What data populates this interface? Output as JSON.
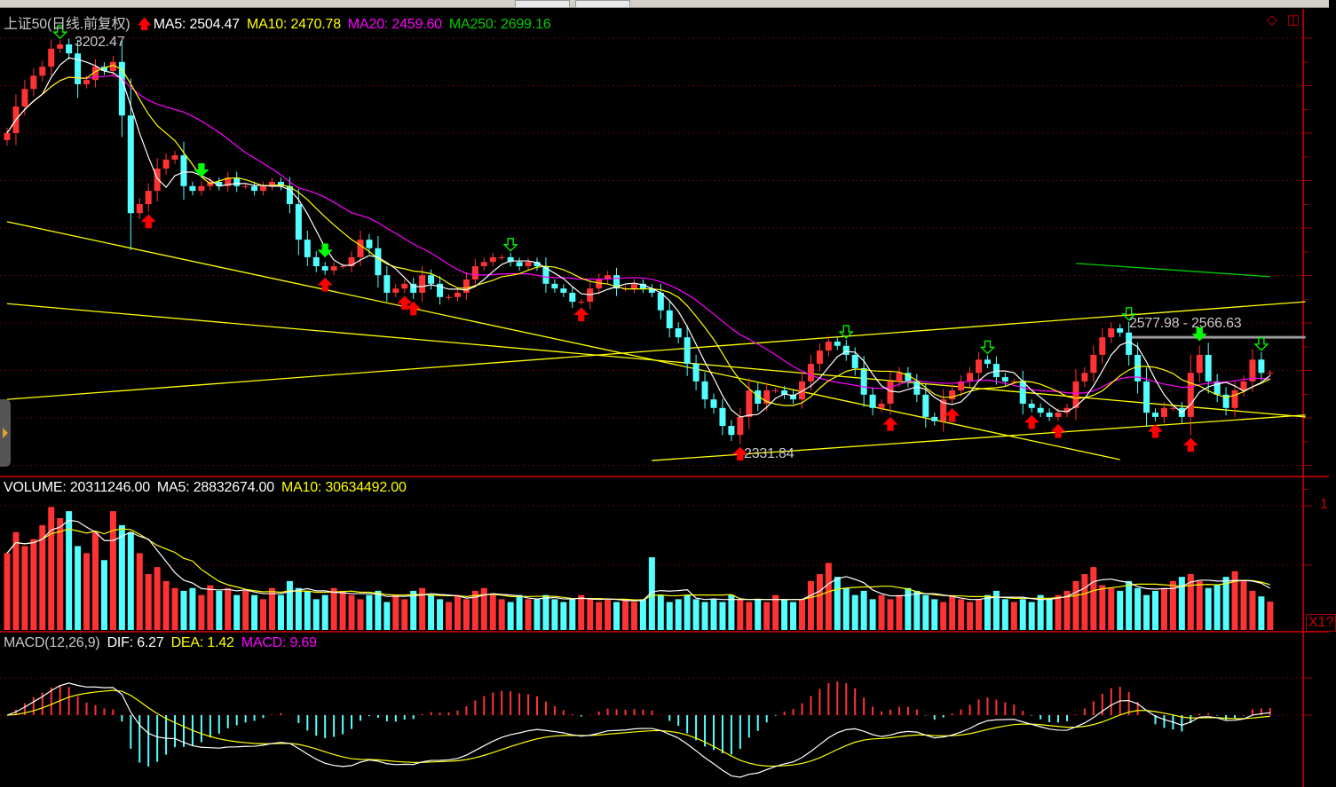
{
  "header": {
    "title": "上证50(日线.前复权)",
    "trend_icon": "red-up-arrow",
    "ma5": "MA5: 2504.47",
    "ma10": "MA10: 2470.78",
    "ma20": "MA20: 2459.60",
    "ma250": "MA250: 2699.16"
  },
  "volume_header": {
    "volume": "VOLUME: 20311246.00",
    "ma5": "MA5: 28832674.00",
    "ma10": "MA10: 30634492.00"
  },
  "macd_header": {
    "name": "MACD(12,26,9)",
    "dif": "DIF: 6.27",
    "dea": "DEA: 1.42",
    "macd": "MACD: 9.69"
  },
  "annotations": {
    "high_label": "3202.47",
    "low_label": "2331.84",
    "range_label": "2577.98 - 2566.63"
  },
  "axis": {
    "volume_tick": "1",
    "volume_multiplier": "X1?"
  },
  "colors": {
    "up": "#ff3333",
    "down": "#54ffff",
    "ma5": "#ffffff",
    "ma10": "#ffff00",
    "ma20": "#ff00ff",
    "ma250": "#00cc00",
    "grid": "#a00000"
  },
  "chart_data": {
    "type": "candlestick",
    "close": [
      3006,
      3062,
      3099,
      3127,
      3146,
      3184,
      3193,
      3174,
      3109,
      3118,
      3146,
      3137,
      3156,
      3043,
      2837,
      2856,
      2884,
      2931,
      2950,
      2959,
      2894,
      2884,
      2894,
      2903,
      2894,
      2912,
      2894,
      2894,
      2884,
      2894,
      2903,
      2894,
      2856,
      2781,
      2744,
      2725,
      2716,
      2725,
      2725,
      2744,
      2781,
      2763,
      2706,
      2669,
      2678,
      2688,
      2669,
      2706,
      2688,
      2660,
      2660,
      2669,
      2697,
      2725,
      2734,
      2744,
      2744,
      2734,
      2725,
      2734,
      2725,
      2688,
      2678,
      2669,
      2650,
      2650,
      2678,
      2697,
      2706,
      2678,
      2678,
      2688,
      2678,
      2669,
      2632,
      2594,
      2575,
      2519,
      2482,
      2444,
      2426,
      2388,
      2369,
      2407,
      2463,
      2435,
      2463,
      2463,
      2454,
      2444,
      2482,
      2519,
      2547,
      2566,
      2557,
      2538,
      2510,
      2454,
      2426,
      2435,
      2482,
      2500,
      2482,
      2454,
      2407,
      2398,
      2444,
      2463,
      2482,
      2500,
      2528,
      2519,
      2491,
      2482,
      2482,
      2435,
      2426,
      2416,
      2407,
      2416,
      2426,
      2482,
      2500,
      2538,
      2575,
      2594,
      2585,
      2538,
      2482,
      2416,
      2407,
      2426,
      2426,
      2407,
      2500,
      2538,
      2482,
      2454,
      2426,
      2463,
      2482,
      2528,
      2500,
      2500
    ],
    "volume_millions": [
      55,
      70,
      60,
      65,
      75,
      88,
      80,
      85,
      60,
      55,
      70,
      50,
      85,
      75,
      70,
      55,
      40,
      45,
      35,
      30,
      28,
      30,
      25,
      32,
      28,
      30,
      25,
      28,
      25,
      22,
      30,
      25,
      35,
      30,
      28,
      22,
      25,
      30,
      28,
      25,
      22,
      25,
      28,
      20,
      25,
      22,
      28,
      30,
      25,
      22,
      20,
      25,
      22,
      28,
      30,
      25,
      22,
      20,
      25,
      22,
      22,
      25,
      22,
      20,
      22,
      25,
      22,
      20,
      22,
      20,
      22,
      20,
      22,
      52,
      25,
      20,
      22,
      25,
      22,
      20,
      22,
      20,
      25,
      22,
      20,
      22,
      20,
      25,
      22,
      20,
      22,
      35,
      40,
      48,
      38,
      30,
      25,
      28,
      22,
      25,
      22,
      25,
      30,
      28,
      25,
      22,
      20,
      25,
      22,
      20,
      22,
      25,
      28,
      22,
      20,
      22,
      20,
      25,
      22,
      25,
      28,
      35,
      40,
      45,
      32,
      30,
      28,
      35,
      30,
      25,
      28,
      30,
      35,
      38,
      40,
      35,
      30,
      32,
      38,
      42,
      35,
      28,
      24,
      20.3
    ],
    "trend_lines": [
      {
        "color": "#ffff00",
        "from": [
          0,
          2819
        ],
        "to": [
          126,
          2317
        ]
      },
      {
        "color": "#ffff00",
        "from": [
          0,
          2646
        ],
        "to": [
          147,
          2407
        ]
      },
      {
        "color": "#ffff00",
        "from": [
          0,
          2444
        ],
        "to": [
          147,
          2650
        ]
      },
      {
        "color": "#ffff00",
        "from": [
          73,
          2315
        ],
        "to": [
          147,
          2411
        ]
      },
      {
        "color": "#00cc00",
        "from": [
          121,
          2731
        ],
        "to": [
          143,
          2703
        ]
      },
      {
        "color": "#999999",
        "from": [
          127,
          2575
        ],
        "to": [
          147,
          2575
        ]
      }
    ],
    "buy_signals": [
      16,
      36,
      45,
      46,
      65,
      83,
      100,
      107,
      116,
      119,
      130,
      134
    ],
    "sell_signals": [
      22,
      36,
      135
    ],
    "hollow_sell_signals": [
      6,
      57,
      95,
      111,
      127,
      142
    ]
  }
}
